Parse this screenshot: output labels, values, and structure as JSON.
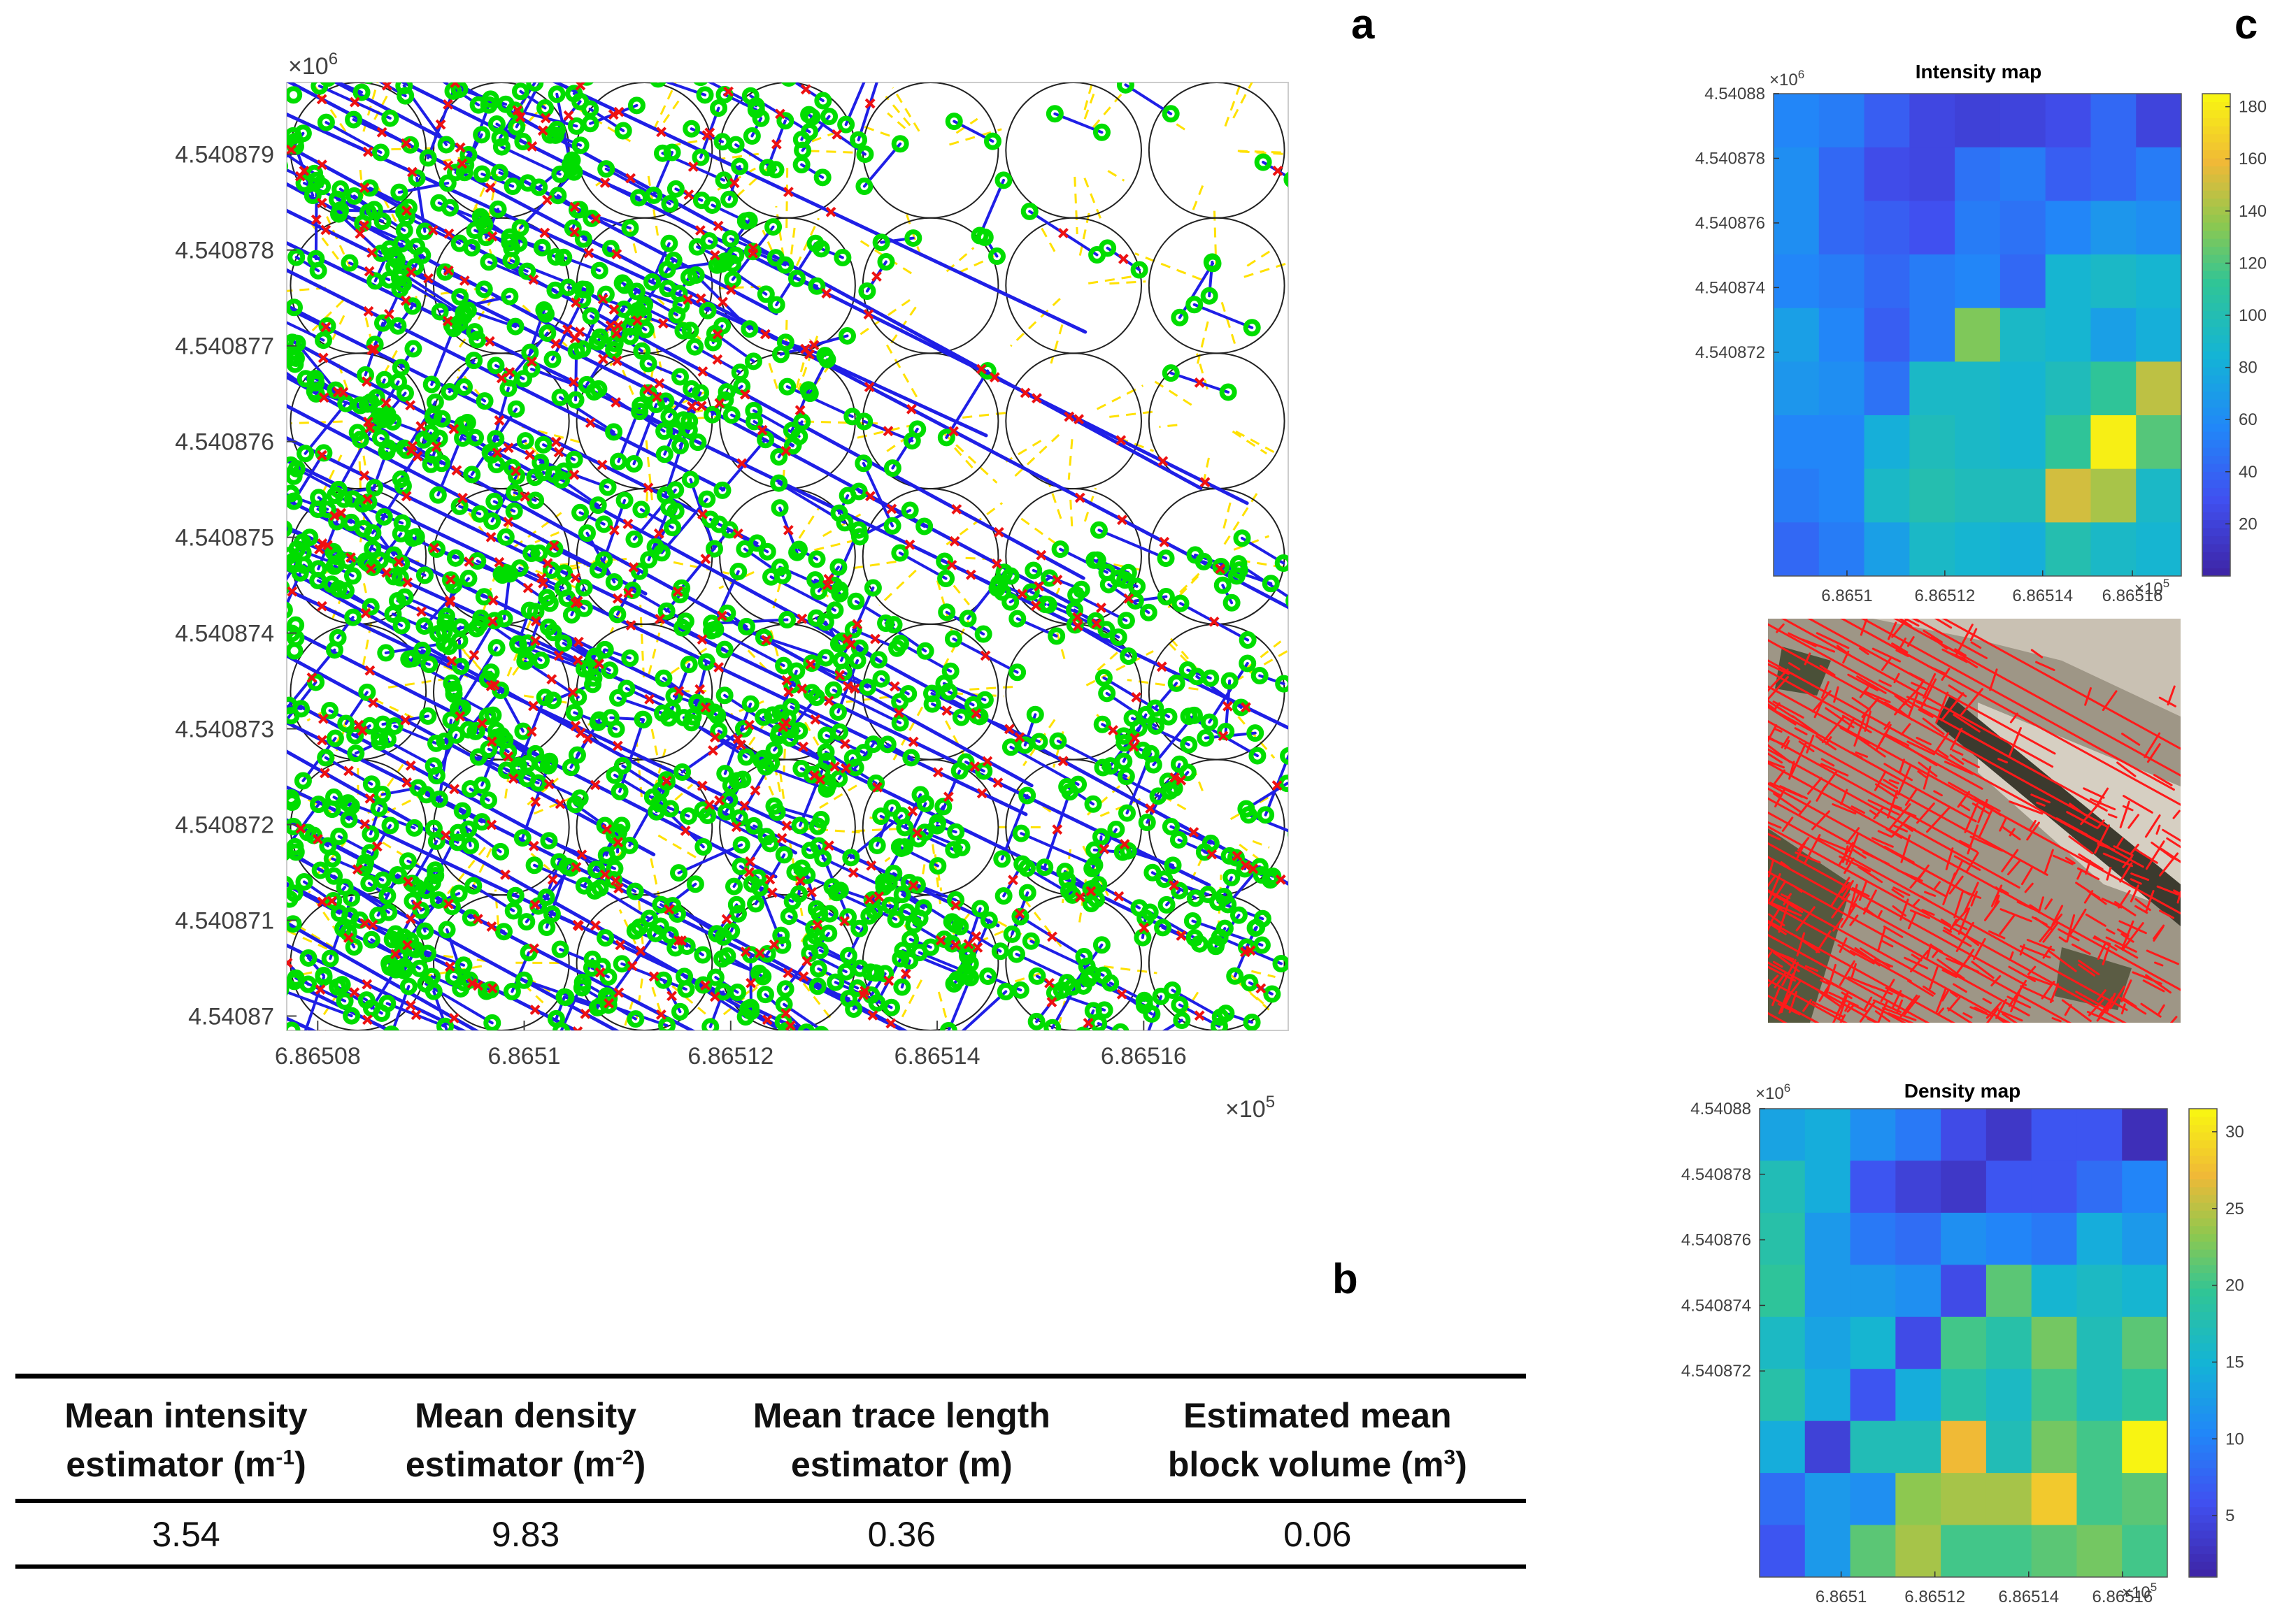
{
  "panel_labels": {
    "a": "a",
    "b": "b",
    "c": "c"
  },
  "colors": {
    "trace": "#1f1fe6",
    "endpoint": "#00dd00",
    "intersection": "#ee1111",
    "circle": "#222222",
    "voronoi": "#ffe100",
    "photo_trace": "#ff1a1a"
  },
  "panel_a": {
    "exponent_y": "×10",
    "exponent_y_power": "6",
    "exponent_x": "×10",
    "exponent_x_power": "5"
  },
  "table": {
    "headers": [
      {
        "line1": "Mean intensity",
        "line2": "estimator (m",
        "unit_power": "-1",
        "tail": ")"
      },
      {
        "line1": "Mean density",
        "line2": "estimator (m",
        "unit_power": "-2",
        "tail": ")"
      },
      {
        "line1": "Mean trace length",
        "line2": "estimator (m)",
        "unit_power": "",
        "tail": ""
      },
      {
        "line1": "Estimated mean",
        "line2": "block volume (m",
        "unit_power": "3",
        "tail": ")"
      }
    ],
    "values": [
      "3.54",
      "9.83",
      "0.36",
      "0.06"
    ]
  },
  "photo": {
    "description_label": ""
  },
  "chart_data": [
    {
      "type": "scatter",
      "title": "",
      "xlabel": "",
      "ylabel": "",
      "x_ticks": [
        "6.86508",
        "6.8651",
        "6.86512",
        "6.86514",
        "6.86516"
      ],
      "y_ticks": [
        "4.540879",
        "4.540878",
        "4.540877",
        "4.540876",
        "4.540875",
        "4.540874",
        "4.540873",
        "4.540872",
        "4.540871",
        "4.54087"
      ],
      "xlim": [
        686507.7,
        686517.4
      ],
      "ylim": [
        4540869.85,
        4540879.75
      ],
      "x_multiplier": "×10^5",
      "y_multiplier": "×10^6",
      "series": [
        {
          "name": "fracture traces",
          "marker": "line"
        },
        {
          "name": "trace endpoints",
          "marker": "circle"
        },
        {
          "name": "intersections",
          "marker": "x"
        },
        {
          "name": "scan circles",
          "marker": "circle-outline"
        },
        {
          "name": "voronoi",
          "marker": "dashed"
        }
      ],
      "circle_grid": {
        "cols": 7,
        "rows": 7,
        "radius_m": 0.75
      }
    },
    {
      "type": "heatmap",
      "title": "Intensity map",
      "x_ticks": [
        "6.8651",
        "6.86512",
        "6.86514",
        "6.86516"
      ],
      "y_ticks": [
        "4.54088",
        "4.540878",
        "4.540876",
        "4.540874",
        "4.540872"
      ],
      "x_multiplier": "×10^5",
      "y_multiplier": "×10^6",
      "colorbar_ticks": [
        20,
        40,
        60,
        80,
        100,
        120,
        140,
        160,
        180
      ],
      "clim": [
        0,
        185
      ],
      "values": [
        [
          55,
          50,
          35,
          22,
          18,
          20,
          25,
          40,
          20
        ],
        [
          60,
          40,
          25,
          22,
          45,
          50,
          35,
          40,
          50
        ],
        [
          60,
          40,
          35,
          28,
          50,
          45,
          55,
          65,
          60
        ],
        [
          55,
          50,
          40,
          50,
          55,
          40,
          85,
          90,
          85
        ],
        [
          70,
          55,
          35,
          50,
          130,
          90,
          85,
          70,
          80
        ],
        [
          65,
          60,
          45,
          90,
          90,
          85,
          95,
          110,
          145
        ],
        [
          55,
          55,
          80,
          95,
          90,
          85,
          110,
          180,
          120
        ],
        [
          50,
          55,
          90,
          100,
          95,
          95,
          150,
          140,
          90
        ],
        [
          40,
          50,
          70,
          90,
          85,
          80,
          100,
          90,
          85
        ]
      ]
    },
    {
      "type": "heatmap",
      "title": "Density map",
      "x_ticks": [
        "6.8651",
        "6.86512",
        "6.86514",
        "6.86516"
      ],
      "y_ticks": [
        "4.54088",
        "4.540878",
        "4.540876",
        "4.540874",
        "4.540872"
      ],
      "x_multiplier": "×10^5",
      "y_multiplier": "×10^6",
      "colorbar_ticks": [
        5,
        10,
        15,
        20,
        25,
        30
      ],
      "clim": [
        1,
        31.5
      ],
      "values": [
        [
          13,
          14,
          11,
          9,
          5,
          3,
          6,
          6,
          2
        ],
        [
          17,
          14,
          6,
          4,
          3,
          6,
          6,
          8,
          10
        ],
        [
          18,
          12,
          9,
          8,
          11,
          10,
          9,
          14,
          12
        ],
        [
          19,
          12,
          12,
          11,
          5,
          21,
          15,
          16,
          15
        ],
        [
          16,
          13,
          15,
          5,
          20,
          18,
          22,
          17,
          21
        ],
        [
          18,
          14,
          6,
          14,
          18,
          16,
          20,
          17,
          19
        ],
        [
          14,
          4,
          17,
          17,
          27,
          17,
          22,
          20,
          31
        ],
        [
          8,
          12,
          11,
          23,
          24,
          24,
          28,
          20,
          21
        ],
        [
          6,
          12,
          21,
          24,
          20,
          20,
          21,
          22,
          20
        ]
      ]
    }
  ]
}
